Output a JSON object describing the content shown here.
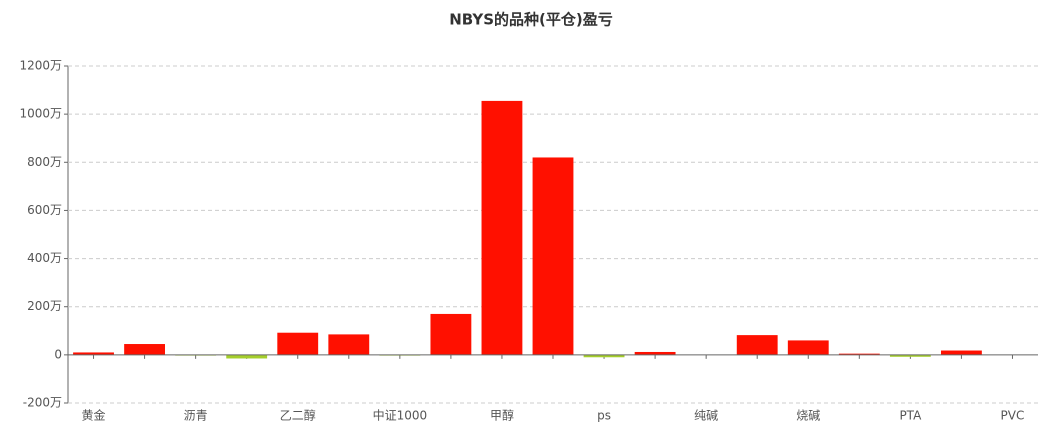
{
  "chart_data": {
    "type": "bar",
    "title": "NBYS的品种(平仓)盈亏",
    "categories": [
      "黄金",
      null,
      "沥青",
      null,
      "乙二醇",
      null,
      "中证1000",
      null,
      "甲醇",
      null,
      "ps",
      null,
      "纯碱",
      null,
      "烧碱",
      null,
      "PTA",
      null,
      "PVC"
    ],
    "values": [
      10,
      45,
      -3,
      -15,
      92,
      85,
      -3,
      170,
      1055,
      820,
      -10,
      12,
      0,
      82,
      60,
      5,
      -8,
      18,
      1
    ],
    "positive_color": "#ff1000",
    "negative_color": "#a5cf2b",
    "ylim": [
      -200,
      1200
    ],
    "yticks": [
      {
        "value": -200,
        "label": "-200万"
      },
      0,
      {
        "value": 200,
        "label": "200万"
      },
      {
        "value": 400,
        "label": "400万"
      },
      {
        "value": 600,
        "label": "600万"
      },
      {
        "value": 800,
        "label": "800万"
      },
      {
        "value": 1000,
        "label": "1000万"
      },
      {
        "value": 1200,
        "label": "1200万"
      }
    ],
    "grid": true
  }
}
